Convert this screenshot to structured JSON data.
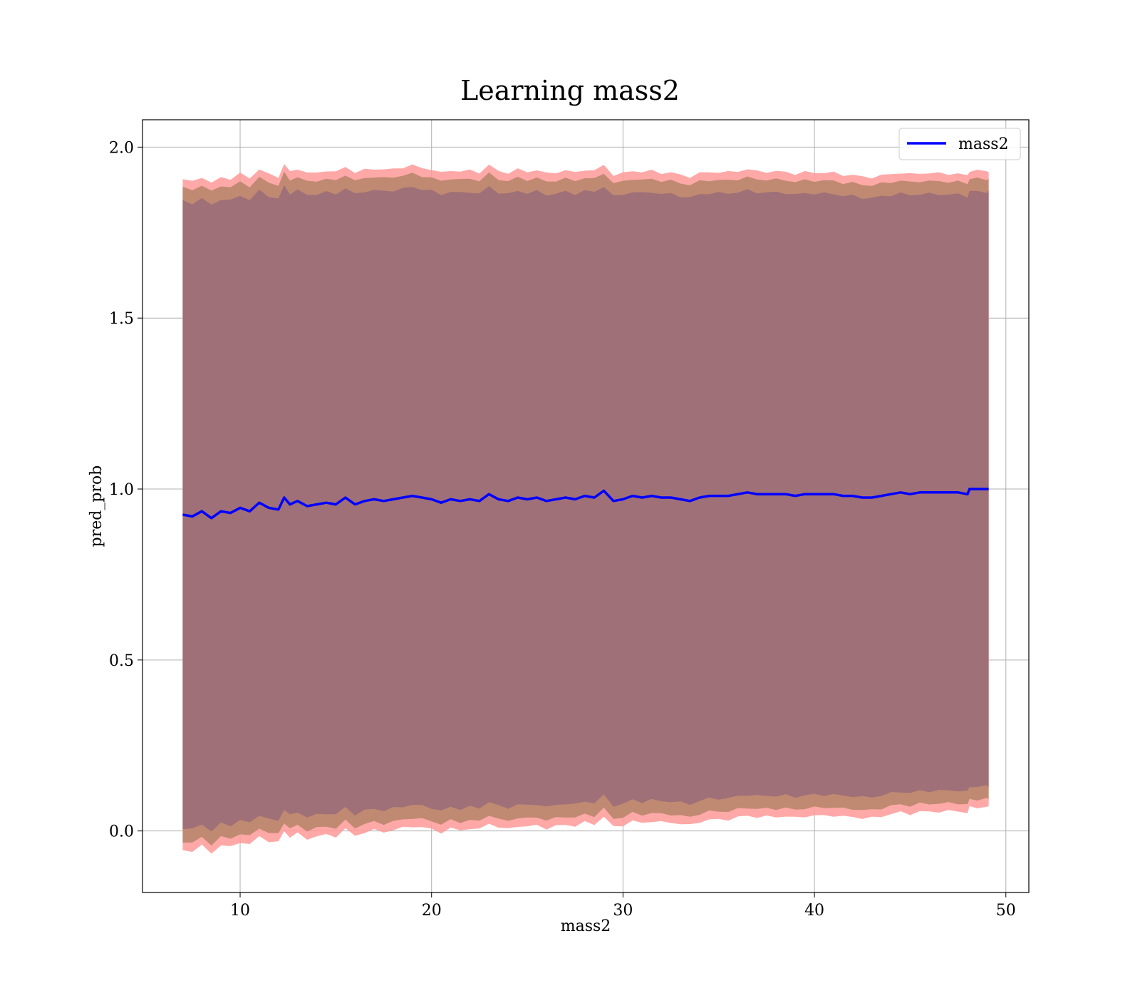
{
  "chart_data": {
    "type": "line",
    "title": "Learning mass2",
    "xlabel": "mass2",
    "ylabel": "pred_prob",
    "xlim": [
      4.9,
      51.2
    ],
    "ylim": [
      -0.18,
      2.08
    ],
    "xticks": [
      10,
      20,
      30,
      40,
      50
    ],
    "xtick_labels": [
      "10",
      "20",
      "30",
      "40",
      "50"
    ],
    "yticks": [
      0.0,
      0.5,
      1.0,
      1.5,
      2.0
    ],
    "ytick_labels": [
      "0.0",
      "0.5",
      "1.0",
      "1.5",
      "2.0"
    ],
    "grid": true,
    "legend": {
      "position": "top-right",
      "entries": [
        "mass2"
      ]
    },
    "colors": {
      "line": "#0000ff",
      "band_outer": "#ff9999",
      "band_mid": "#c08a72",
      "band_inner": "#a07078"
    },
    "x": [
      7.0,
      7.5,
      8.0,
      8.5,
      9.0,
      9.5,
      10.0,
      10.5,
      11.0,
      11.5,
      12.0,
      12.3,
      12.6,
      13.0,
      13.5,
      14.0,
      14.5,
      15.0,
      15.5,
      16.0,
      16.5,
      17.0,
      17.5,
      18.0,
      18.5,
      19.0,
      19.5,
      20.0,
      20.5,
      21.0,
      21.5,
      22.0,
      22.5,
      23.0,
      23.5,
      24.0,
      24.5,
      25.0,
      25.5,
      26.0,
      26.5,
      27.0,
      27.5,
      28.0,
      28.5,
      29.0,
      29.5,
      30.0,
      30.5,
      31.0,
      31.5,
      32.0,
      32.5,
      33.0,
      33.5,
      34.0,
      34.5,
      35.0,
      35.5,
      36.0,
      36.5,
      37.0,
      37.5,
      38.0,
      38.5,
      39.0,
      39.5,
      40.0,
      40.5,
      41.0,
      41.5,
      42.0,
      42.5,
      43.0,
      43.5,
      44.0,
      44.5,
      45.0,
      45.5,
      46.0,
      46.5,
      47.0,
      47.5,
      48.0,
      48.1,
      48.5,
      49.0,
      49.1
    ],
    "series": [
      {
        "name": "mass2",
        "values": [
          0.925,
          0.92,
          0.935,
          0.915,
          0.935,
          0.93,
          0.945,
          0.935,
          0.96,
          0.945,
          0.94,
          0.975,
          0.955,
          0.965,
          0.95,
          0.955,
          0.96,
          0.955,
          0.975,
          0.955,
          0.965,
          0.97,
          0.965,
          0.97,
          0.975,
          0.98,
          0.975,
          0.97,
          0.96,
          0.97,
          0.965,
          0.97,
          0.965,
          0.985,
          0.97,
          0.965,
          0.975,
          0.97,
          0.975,
          0.965,
          0.97,
          0.975,
          0.97,
          0.98,
          0.975,
          0.995,
          0.965,
          0.97,
          0.98,
          0.975,
          0.98,
          0.975,
          0.975,
          0.97,
          0.965,
          0.975,
          0.98,
          0.98,
          0.98,
          0.985,
          0.99,
          0.985,
          0.985,
          0.985,
          0.985,
          0.98,
          0.985,
          0.985,
          0.985,
          0.985,
          0.98,
          0.98,
          0.975,
          0.975,
          0.98,
          0.985,
          0.99,
          0.985,
          0.99,
          0.99,
          0.99,
          0.99,
          0.99,
          0.985,
          1.0,
          1.0,
          1.0,
          1.0
        ]
      }
    ]
  }
}
